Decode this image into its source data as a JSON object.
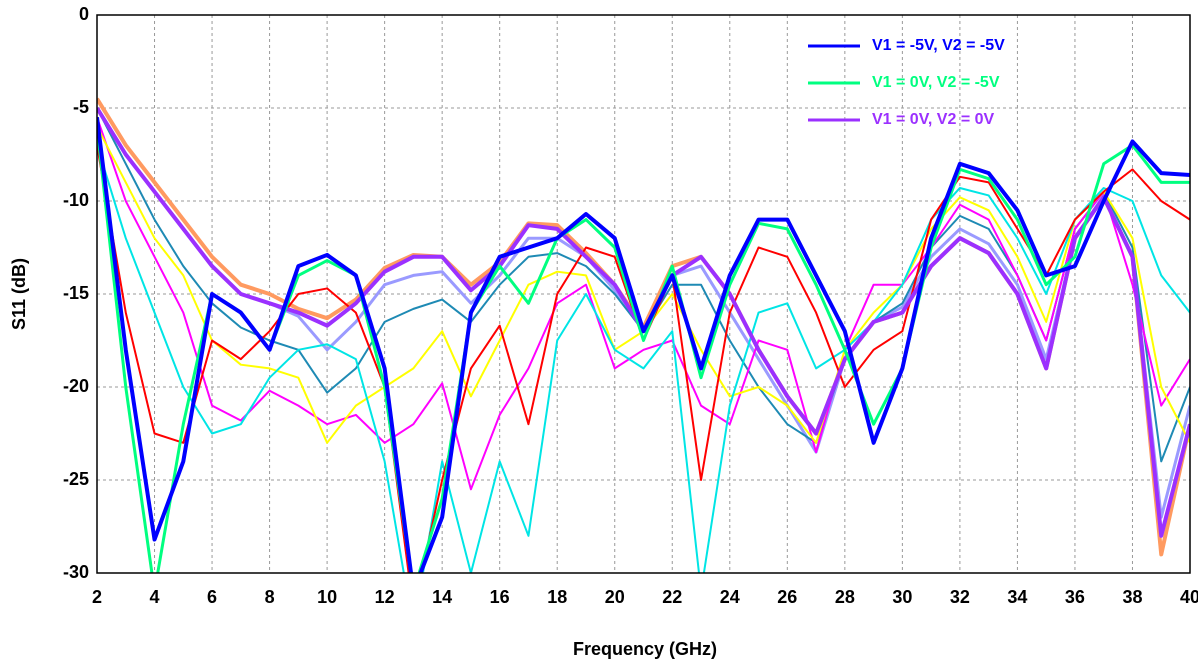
{
  "chart_data": {
    "type": "line",
    "xlabel": "Frequency (GHz)",
    "ylabel": "S11 (dB)",
    "x": [
      2,
      3,
      4,
      5,
      6,
      7,
      8,
      9,
      10,
      11,
      12,
      13,
      14,
      15,
      16,
      17,
      18,
      19,
      20,
      21,
      22,
      23,
      24,
      25,
      26,
      27,
      28,
      29,
      30,
      31,
      32,
      33,
      34,
      35,
      36,
      37,
      38,
      39,
      40
    ],
    "xlim": [
      2,
      40
    ],
    "ylim": [
      -30,
      0
    ],
    "xticks": [
      2,
      4,
      6,
      8,
      10,
      12,
      14,
      16,
      18,
      20,
      22,
      24,
      26,
      28,
      30,
      32,
      34,
      36,
      38,
      40
    ],
    "yticks": [
      0,
      -5,
      -10,
      -15,
      -20,
      -25,
      -30
    ],
    "grid": true,
    "legend": "upper right",
    "series": [
      {
        "name": "V1 = -5V, V2 = -5V",
        "color": "#0000ff",
        "width": 4,
        "values": [
          -5.5,
          -18,
          -28.2,
          -24,
          -15,
          -16,
          -18,
          -13.5,
          -12.9,
          -14,
          -19,
          -31,
          -27,
          -16,
          -13,
          -12.5,
          -12,
          -10.7,
          -12,
          -17,
          -14,
          -19,
          -14,
          -11,
          -11,
          -14,
          -17,
          -23,
          -19,
          -12,
          -8,
          -8.5,
          -10.5,
          -14,
          -13.5,
          -10,
          -6.8,
          -8.5,
          -8.6
        ]
      },
      {
        "name": "V1 = 0V, V2 = -5V",
        "color": "#00ff80",
        "width": 3,
        "values": [
          -6,
          -20,
          -31,
          -22,
          -15,
          -16,
          -18,
          -14,
          -13.2,
          -14,
          -20,
          -31,
          -26,
          -16,
          -13.5,
          -15.5,
          -12,
          -11,
          -12.5,
          -17.5,
          -13.5,
          -19.5,
          -14.5,
          -11.2,
          -11.5,
          -14.5,
          -18,
          -22,
          -19,
          -12.5,
          -8.3,
          -8.8,
          -11,
          -14.5,
          -13,
          -8,
          -7,
          -9,
          -9
        ]
      },
      {
        "name": "V1 = 0V, V2 = 0V",
        "color": "#9b30ff",
        "width": 4,
        "values": [
          -5,
          -7.5,
          -9.5,
          -11.5,
          -13.5,
          -15,
          -15.5,
          -16,
          -16.7,
          -15.5,
          -13.8,
          -13,
          -13,
          -14.8,
          -13.5,
          -11.3,
          -11.5,
          -13,
          -14.5,
          -17,
          -14,
          -13,
          -15,
          -18,
          -20.5,
          -22.5,
          -18.5,
          -16.5,
          -16,
          -13.5,
          -12,
          -12.8,
          -15,
          -19,
          -12,
          -9.8,
          -13,
          -28,
          -22
        ]
      },
      {
        "color": "#ff0000",
        "width": 2,
        "values": [
          -7,
          -16,
          -22.5,
          -23,
          -17.5,
          -18.5,
          -17,
          -15,
          -14.7,
          -16,
          -20,
          -32,
          -25,
          -19,
          -16.7,
          -22,
          -15,
          -12.5,
          -13,
          -17.5,
          -14,
          -25,
          -16,
          -12.5,
          -13,
          -16,
          -20,
          -18,
          -17,
          -11,
          -8.7,
          -9,
          -11.5,
          -14,
          -11,
          -9.5,
          -8.3,
          -10,
          -11
        ]
      },
      {
        "color": "#00e5e5",
        "width": 2,
        "values": [
          -7,
          -12,
          -16,
          -20,
          -22.5,
          -22,
          -19.5,
          -18,
          -17.7,
          -18.5,
          -24,
          -33,
          -24,
          -30,
          -24,
          -28,
          -17.5,
          -15,
          -18,
          -19,
          -17,
          -31,
          -21,
          -16,
          -15.5,
          -19,
          -18,
          -16.5,
          -14.5,
          -11,
          -9.3,
          -9.7,
          -12,
          -15,
          -11,
          -9.3,
          -10,
          -14,
          -16
        ]
      },
      {
        "color": "#ffff00",
        "width": 2,
        "values": [
          -6,
          -9,
          -12,
          -14,
          -17.5,
          -18.8,
          -19,
          -19.5,
          -23,
          -21,
          -20,
          -19,
          -17,
          -20.5,
          -17.5,
          -14.5,
          -13.8,
          -14,
          -18,
          -17,
          -15,
          -18,
          -20.5,
          -20,
          -21,
          -23,
          -18,
          -16,
          -14.5,
          -11.5,
          -9.8,
          -10.5,
          -13,
          -16.5,
          -11,
          -9.5,
          -12,
          -20,
          -23
        ]
      },
      {
        "color": "#ff00ff",
        "width": 2,
        "values": [
          -5.5,
          -10,
          -13,
          -16,
          -21,
          -21.8,
          -20.2,
          -21,
          -22,
          -21.5,
          -23,
          -22,
          -19.8,
          -25.5,
          -21.5,
          -19,
          -15.5,
          -14.5,
          -19,
          -18,
          -17.5,
          -21,
          -22,
          -17.5,
          -18,
          -23.5,
          -18,
          -14.5,
          -14.5,
          -12.5,
          -10.2,
          -11,
          -14,
          -17.5,
          -11.5,
          -9.5,
          -14.5,
          -21,
          -18.5
        ]
      },
      {
        "color": "#1e8ab4",
        "width": 2,
        "values": [
          -5,
          -8,
          -11,
          -13.5,
          -15.5,
          -16.8,
          -17.5,
          -18,
          -20.3,
          -19,
          -16.5,
          -15.8,
          -15.3,
          -16.5,
          -14.5,
          -13,
          -12.8,
          -13.5,
          -15,
          -17,
          -14.5,
          -14.5,
          -17.5,
          -20,
          -22,
          -23,
          -18.5,
          -16.5,
          -15.5,
          -12.5,
          -10.8,
          -11.5,
          -14,
          -17.5,
          -11.5,
          -9.5,
          -12.5,
          -24,
          -20
        ]
      },
      {
        "color": "#9a9aff",
        "width": 3,
        "values": [
          -5,
          -7.5,
          -9.5,
          -11.5,
          -13.5,
          -15,
          -15.5,
          -16.2,
          -18,
          -16.5,
          -14.5,
          -14,
          -13.8,
          -15.5,
          -14,
          -12,
          -12,
          -13,
          -14.8,
          -17,
          -14,
          -13.5,
          -16,
          -18.5,
          -21,
          -23.5,
          -18.5,
          -16.5,
          -15.7,
          -13,
          -11.5,
          -12.3,
          -14.5,
          -18.5,
          -12,
          -9.7,
          -13,
          -27,
          -21
        ]
      },
      {
        "color": "#ff9a60",
        "width": 4,
        "values": [
          -4.5,
          -7,
          -9,
          -11,
          -13,
          -14.5,
          -15,
          -15.8,
          -16.3,
          -15.3,
          -13.6,
          -12.9,
          -13,
          -14.5,
          -13.3,
          -11.2,
          -11.3,
          -12.8,
          -14.5,
          -16.8,
          -13.5,
          -13,
          -15,
          -18,
          -20.5,
          -22.5,
          -18.5,
          -16.5,
          -16,
          -13.5,
          -12,
          -12.8,
          -15,
          -19,
          -12,
          -9.8,
          -13,
          -29,
          -22
        ]
      }
    ]
  }
}
